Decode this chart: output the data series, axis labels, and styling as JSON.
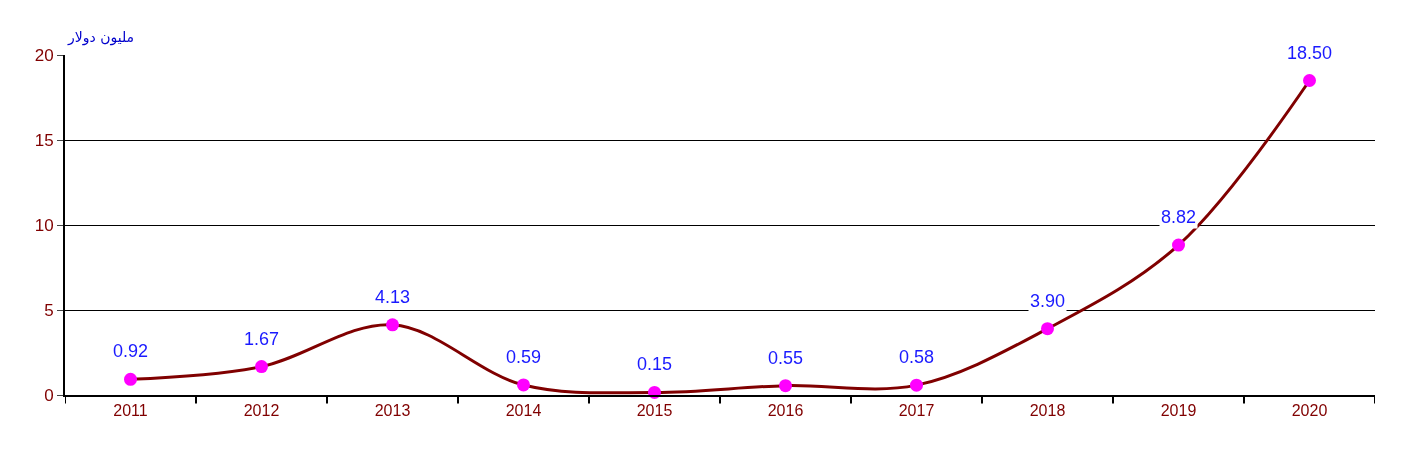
{
  "chart_data": {
    "type": "line",
    "ylabel": "مليون دولار",
    "categories": [
      "2011",
      "2012",
      "2013",
      "2014",
      "2015",
      "2016",
      "2017",
      "2018",
      "2019",
      "2020"
    ],
    "series": [
      {
        "color": "#800000",
        "values": [
          0.92,
          1.67,
          4.13,
          0.59,
          0.15,
          0.55,
          0.58,
          3.9,
          8.82,
          18.5
        ],
        "value_labels": [
          "0.92",
          "1.67",
          "4.13",
          "0.59",
          "0.15",
          "0.55",
          "0.58",
          "3.90",
          "8.82",
          "18.50"
        ]
      }
    ],
    "colors": [
      "#ff00ff",
      "#ff00ff",
      "#ff00ff",
      "#ff00ff",
      "#ff00ff",
      "#ff00ff",
      "#ff00ff",
      "#ff00ff",
      "#ff00ff",
      "#ff00ff"
    ],
    "marker": "circle",
    "line_style": "solid",
    "ylim": [
      0,
      20
    ],
    "yticks": [
      0,
      5,
      10,
      15,
      20
    ],
    "grid": "y"
  }
}
